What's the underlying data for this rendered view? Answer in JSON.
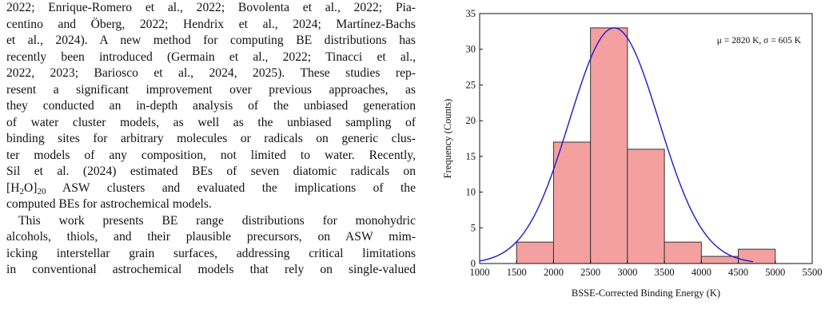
{
  "text": {
    "p1_lines": [
      "2022; Enrique-Romero et al., 2022; Bovolenta et al., 2022; Pia-",
      "centino and Öberg, 2022; Hendrix et al., 2024; Martínez-Bachs",
      "et al., 2024). A new method for computing BE distributions has",
      "recently been introduced (Germain et al., 2022; Tinacci et al.,",
      "2022, 2023; Bariosco et al., 2024, 2025). These studies rep-",
      "resent a significant improvement over previous approaches, as",
      "they conducted an in-depth analysis of the unbiased generation",
      "of water cluster models, as well as the unbiased sampling of",
      "binding sites for arbitrary molecules or radicals on generic clus-",
      "ter models of any composition, not limited to water. Recently,",
      "Sil et al. (2024) estimated BEs of seven diatomic radicals on"
    ],
    "p1_formula_open": "[H",
    "p1_formula_sub1": "2",
    "p1_formula_mid": "O]",
    "p1_formula_sub2": "20",
    "p1_formula_rest": " ASW clusters and evaluated the implications of the",
    "p1_last_line": "computed BEs for astrochemical models.",
    "p2_lines": [
      "This work presents BE range distributions for monohydric",
      "alcohols, thiols, and their plausible precursors, on ASW mim-",
      "icking interstellar grain surfaces, addressing critical limitations",
      "in conventional astrochemical models that rely on single-valued"
    ]
  },
  "chart_data": {
    "type": "bar",
    "subtype": "histogram",
    "bin_edges": [
      1500,
      2000,
      2500,
      3000,
      3500,
      4000,
      4500,
      5000
    ],
    "values": [
      3,
      17,
      33,
      16,
      3,
      1,
      2
    ],
    "fit_curve": {
      "type": "gaussian",
      "mu": 2820,
      "sigma": 605,
      "peak": 33,
      "x_range": [
        1000,
        4700
      ]
    },
    "annotation": "μ = 2820 K, σ = 605 K",
    "xlabel": "BSSE-Corrected Binding Energy (K)",
    "ylabel": "Frequency (Counts)",
    "xlim": [
      1000,
      5500
    ],
    "ylim": [
      0,
      35
    ],
    "xticks": [
      1000,
      1500,
      2000,
      2500,
      3000,
      3500,
      4000,
      4500,
      5000,
      5500
    ],
    "yticks": [
      0,
      5,
      10,
      15,
      20,
      25,
      30,
      35
    ],
    "grid": false,
    "colors": {
      "bar_fill": "#f4a0a0",
      "bar_edge": "#333333",
      "curve": "#1a1acc"
    }
  }
}
